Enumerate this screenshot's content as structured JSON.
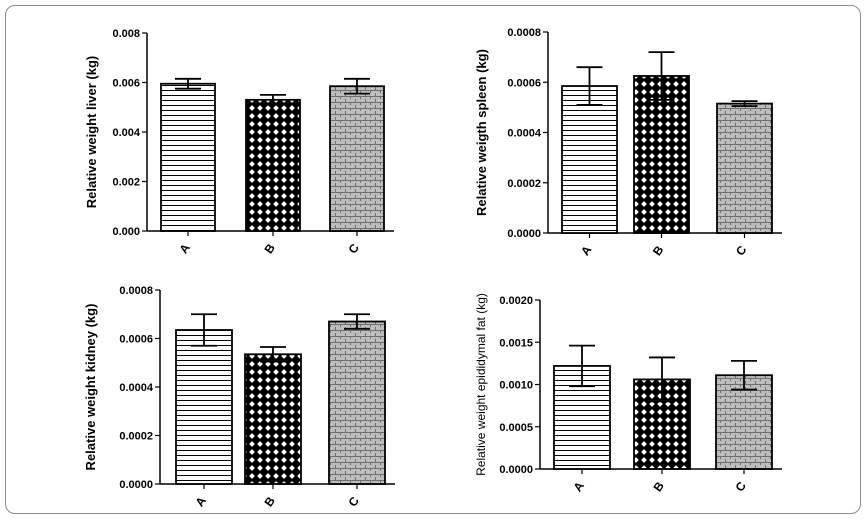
{
  "chart_data": [
    {
      "type": "bar",
      "categories": [
        "A",
        "B",
        "C"
      ],
      "values": [
        0.00595,
        0.0053,
        0.00585
      ],
      "errors": [
        0.0002,
        0.0002,
        0.0003
      ],
      "ylabel": "Relative weight liver (kg)",
      "ylim": [
        0,
        0.008
      ],
      "yticks": [
        "0.000",
        "0.002",
        "0.004",
        "0.006",
        "0.008"
      ]
    },
    {
      "type": "bar",
      "categories": [
        "A",
        "B",
        "C"
      ],
      "values": [
        0.000585,
        0.000625,
        0.000515
      ],
      "errors": [
        7.5e-05,
        9.5e-05,
        1e-05
      ],
      "ylabel": "Relative weigth spleen (kg)",
      "ylim": [
        0,
        0.0008
      ],
      "yticks": [
        "0.0000",
        "0.0002",
        "0.0004",
        "0.0006",
        "0.0008"
      ]
    },
    {
      "type": "bar",
      "categories": [
        "A",
        "B",
        "C"
      ],
      "values": [
        0.000635,
        0.000535,
        0.00067
      ],
      "errors": [
        6.5e-05,
        3e-05,
        3e-05
      ],
      "ylabel": "Relative weight kidney (kg)",
      "ylim": [
        0,
        0.0008
      ],
      "yticks": [
        "0.0000",
        "0.0002",
        "0.0004",
        "0.0006",
        "0.0008"
      ]
    },
    {
      "type": "bar",
      "categories": [
        "A",
        "B",
        "C"
      ],
      "values": [
        0.00122,
        0.00106,
        0.00111
      ],
      "errors": [
        0.00024,
        0.00026,
        0.00017
      ],
      "ylabel": "Relative weight epididymal fat (kg)",
      "ylim": [
        0,
        0.002
      ],
      "yticks": [
        "0.0000",
        "0.0005",
        "0.0010",
        "0.0015",
        "0.0020"
      ]
    }
  ]
}
